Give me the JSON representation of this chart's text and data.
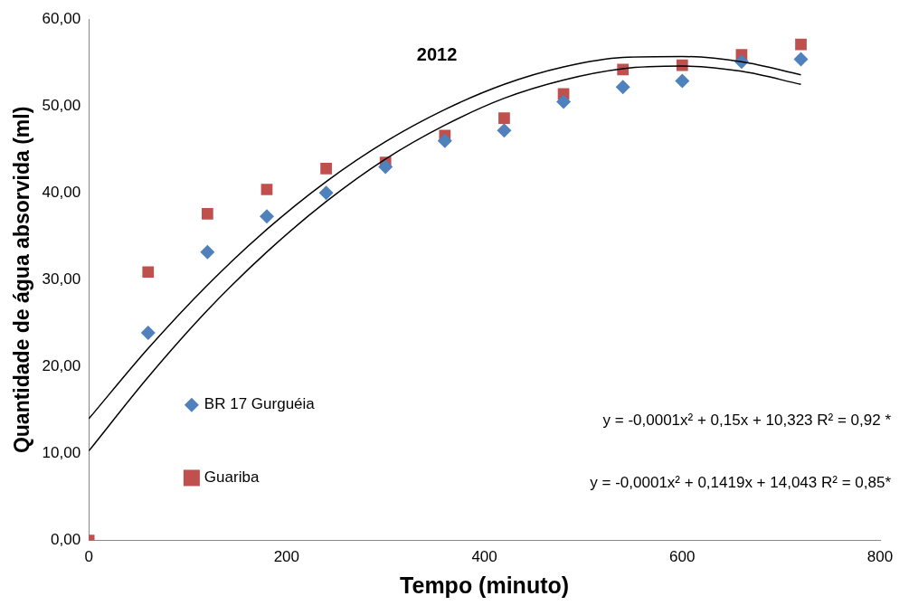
{
  "chart_data": {
    "type": "scatter",
    "xlabel": "Tempo (minuto)",
    "ylabel": "Quantidade de água absorvida (ml)",
    "x": [
      0,
      60,
      120,
      180,
      240,
      300,
      360,
      420,
      480,
      540,
      600,
      660,
      720
    ],
    "series": [
      {
        "name": "BR 17 Gurguéia",
        "color": "#4f81bd",
        "marker": "diamond",
        "values": [
          null,
          23.9,
          33.2,
          37.3,
          40.0,
          43.0,
          46.0,
          47.2,
          50.5,
          52.2,
          52.9,
          55.1,
          55.4
        ]
      },
      {
        "name": "Guariba",
        "color": "#c0504d",
        "marker": "square",
        "values": [
          0,
          30.9,
          37.6,
          40.4,
          42.8,
          43.5,
          46.6,
          48.6,
          51.4,
          54.2,
          54.7,
          55.9,
          57.1
        ]
      },
      {
        "type": "line",
        "color": "#000000",
        "marker": "none",
        "values": [
          14.0,
          22.1,
          29.4,
          35.8,
          41.3,
          45.9,
          49.6,
          52.5,
          54.5,
          55.6,
          55.7,
          55.1,
          53.6
        ]
      },
      {
        "type": "line",
        "color": "#000000",
        "marker": "none",
        "values": [
          10.3,
          18.8,
          26.5,
          33.2,
          39.0,
          43.9,
          47.8,
          50.9,
          53.0,
          54.3,
          54.6,
          54.0,
          52.5
        ]
      }
    ],
    "xlim": [
      0,
      800
    ],
    "xticks": [
      0,
      200,
      400,
      600,
      800
    ],
    "ylim": [
      0,
      60
    ],
    "yticks": [
      {
        "value": 0,
        "label": "0,00"
      },
      {
        "value": 10,
        "label": "10,00"
      },
      {
        "value": 20,
        "label": "20,00"
      },
      {
        "value": 30,
        "label": "30,00"
      },
      {
        "value": 40,
        "label": "40,00"
      },
      {
        "value": 50,
        "label": "50,00"
      },
      {
        "value": 60,
        "label": "60,00"
      }
    ],
    "legend": "left",
    "grid": false,
    "annotations": [
      "2012",
      "y = -0,0001x² + 0,15x + 10,323 R² = 0,92 *",
      "y = -0,0001x² + 0,1419x + 14,043 R² = 0,85*"
    ]
  }
}
